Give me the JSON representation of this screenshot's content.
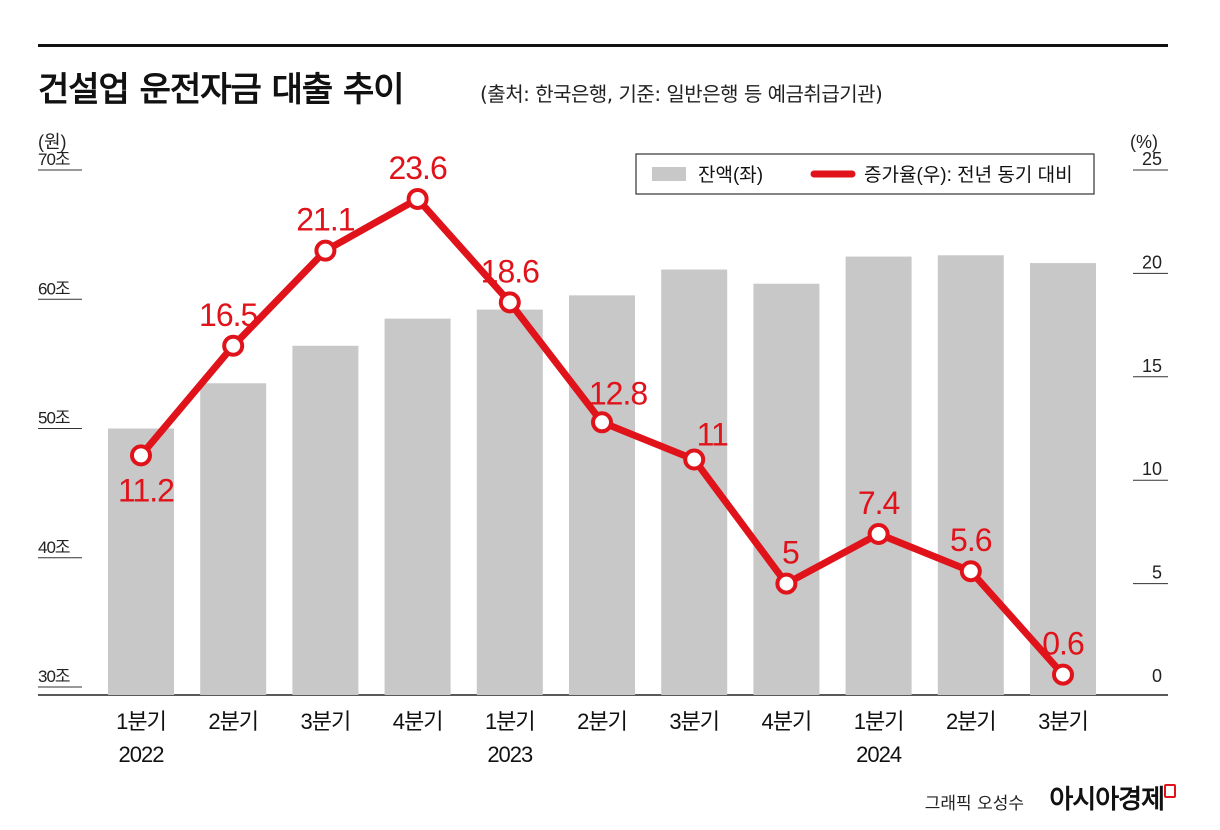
{
  "header": {
    "title": "건설업 운전자금 대출 추이",
    "source_note": "(출처: 한국은행, 기준: 일반은행 등 예금취급기관)"
  },
  "footer": {
    "credit": "그래픽 오성수",
    "brand": "아시아경제"
  },
  "colors": {
    "bar": "#c8c8c8",
    "line": "#e0121a",
    "text": "#111111"
  },
  "chart_data": {
    "type": "bar",
    "categories": [
      "1분기 2022",
      "2분기",
      "3분기",
      "4분기",
      "1분기 2023",
      "2분기",
      "3분기",
      "4분기",
      "1분기 2024",
      "2분기",
      "3분기"
    ],
    "category_lines": [
      [
        "1분기",
        "2022"
      ],
      [
        "2분기"
      ],
      [
        "3분기"
      ],
      [
        "4분기"
      ],
      [
        "1분기",
        "2023"
      ],
      [
        "2분기"
      ],
      [
        "3분기"
      ],
      [
        "4분기"
      ],
      [
        "1분기",
        "2024"
      ],
      [
        "2분기"
      ],
      [
        "3분기"
      ]
    ],
    "left_axis": {
      "unit": "(원)",
      "ticks": [
        30,
        40,
        50,
        60,
        70
      ],
      "tick_labels": [
        "30조",
        "40조",
        "50조",
        "60조",
        "70조"
      ],
      "range": [
        30,
        70
      ]
    },
    "right_axis": {
      "unit": "(%)",
      "ticks": [
        0,
        5,
        10,
        15,
        20,
        25
      ],
      "tick_labels": [
        "0",
        "5",
        "10",
        "15",
        "20",
        "25"
      ],
      "range": [
        0,
        25
      ]
    },
    "series": [
      {
        "name": "잔액(좌)",
        "type": "bar",
        "axis": "left",
        "values": [
          50.0,
          53.5,
          56.4,
          58.5,
          59.2,
          60.3,
          62.3,
          61.2,
          63.3,
          63.4,
          62.8
        ]
      },
      {
        "name": "증가율(우): 전년 동기 대비",
        "type": "line",
        "axis": "right",
        "values": [
          11.2,
          16.5,
          21.1,
          23.6,
          18.6,
          12.8,
          11,
          5,
          7.4,
          5.6,
          0.6
        ],
        "labels": [
          "11.2",
          "16.5",
          "21.1",
          "23.6",
          "18.6",
          "12.8",
          "11",
          "5",
          "7.4",
          "5.6",
          "0.6"
        ]
      }
    ],
    "legend_position": "top-right",
    "grid": false
  }
}
